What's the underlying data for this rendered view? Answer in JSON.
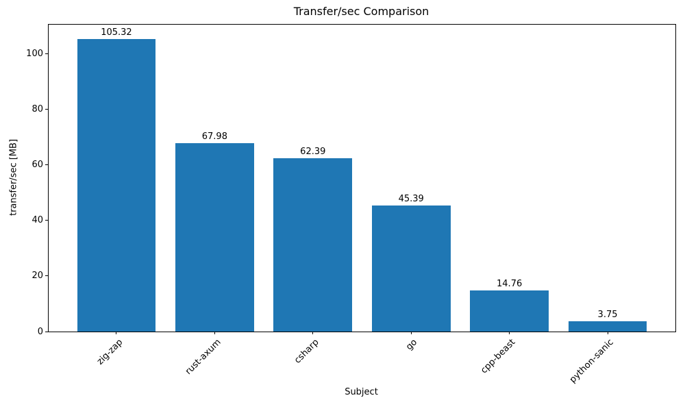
{
  "chart_data": {
    "type": "bar",
    "title": "Transfer/sec Comparison",
    "xlabel": "Subject",
    "ylabel": "transfer/sec [MB]",
    "categories": [
      "zig-zap",
      "rust-axum",
      "csharp",
      "go",
      "cpp-beast",
      "python-sanic"
    ],
    "values": [
      105.32,
      67.98,
      62.39,
      45.39,
      14.76,
      3.75
    ],
    "value_labels": [
      "105.32",
      "67.98",
      "62.39",
      "45.39",
      "14.76",
      "3.75"
    ],
    "yticks": [
      0,
      20,
      40,
      60,
      80,
      100
    ],
    "ytick_labels": [
      "0",
      "20",
      "40",
      "60",
      "80",
      "100"
    ],
    "ylim": [
      0,
      110.59
    ],
    "bar_color": "#1f77b4",
    "grid": false,
    "legend": null,
    "x_tick_rotation_deg": 45
  }
}
